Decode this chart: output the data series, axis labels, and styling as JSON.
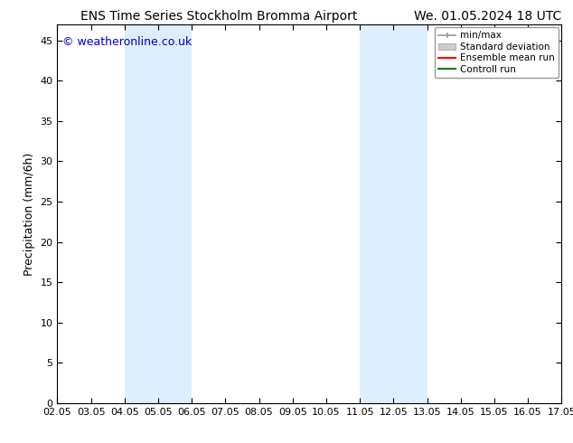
{
  "title_left": "ENS Time Series Stockholm Bromma Airport",
  "title_right": "We. 01.05.2024 18 UTC",
  "ylabel": "Precipitation (mm/6h)",
  "watermark": "© weatheronline.co.uk",
  "xlim_start": 2.05,
  "xlim_end": 17.05,
  "ylim_bottom": 0,
  "ylim_top": 47,
  "yticks": [
    0,
    5,
    10,
    15,
    20,
    25,
    30,
    35,
    40,
    45
  ],
  "xtick_labels": [
    "02.05",
    "03.05",
    "04.05",
    "05.05",
    "06.05",
    "07.05",
    "08.05",
    "09.05",
    "10.05",
    "11.05",
    "12.05",
    "13.05",
    "14.05",
    "15.05",
    "16.05",
    "17.05"
  ],
  "xtick_positions": [
    2.05,
    3.05,
    4.05,
    5.05,
    6.05,
    7.05,
    8.05,
    9.05,
    10.05,
    11.05,
    12.05,
    13.05,
    14.05,
    15.05,
    16.05,
    17.05
  ],
  "shaded_bands": [
    {
      "x_start": 4.05,
      "x_end": 6.05
    },
    {
      "x_start": 11.05,
      "x_end": 13.05
    }
  ],
  "shade_color": "#ddeeff",
  "background_color": "#ffffff",
  "legend_labels": [
    "min/max",
    "Standard deviation",
    "Ensemble mean run",
    "Controll run"
  ],
  "legend_colors": [
    "#999999",
    "#cccccc",
    "#ff0000",
    "#008000"
  ],
  "title_fontsize": 10,
  "tick_fontsize": 8,
  "ylabel_fontsize": 9,
  "legend_fontsize": 7.5,
  "watermark_color": "#0000cc",
  "watermark_fontsize": 9
}
